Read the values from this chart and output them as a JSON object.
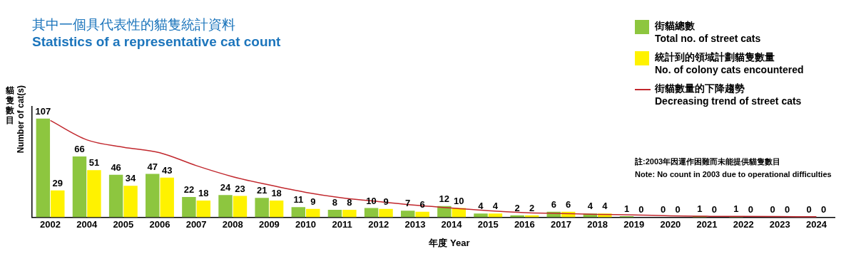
{
  "chart_data": {
    "type": "bar",
    "title": "其中一個具代表性的貓隻統計資料",
    "subtitle": "Statistics of a representative cat count",
    "xlabel": "年度  Year",
    "ylabel": "貓隻數目\nNumber of cat(s)",
    "categories": [
      "2002",
      "2004",
      "2005",
      "2006",
      "2007",
      "2008",
      "2009",
      "2010",
      "2011",
      "2012",
      "2013",
      "2014",
      "2015",
      "2016",
      "2017",
      "2018",
      "2019",
      "2020",
      "2021",
      "2022",
      "2023",
      "2024"
    ],
    "series": [
      {
        "name": "街貓總數\nTotal no. of street cats",
        "color": "#8dc63f",
        "values": [
          107,
          66,
          46,
          47,
          22,
          24,
          21,
          11,
          8,
          10,
          7,
          12,
          4,
          2,
          6,
          4,
          1,
          0,
          1,
          1,
          0,
          0
        ],
        "value_labels": [
          "107",
          "66",
          "46",
          "47",
          "22",
          "24",
          "21",
          "11",
          "8",
          "10",
          "7",
          "12",
          "4",
          "2",
          "6",
          "4",
          "1",
          "0",
          "1",
          "1",
          "0",
          "0"
        ]
      },
      {
        "name": "統計到的領域計劃貓隻數量\nNo. of colony cats encountered",
        "color": "#fff200",
        "values": [
          29,
          51,
          34,
          43,
          18,
          23,
          18,
          9,
          8,
          9,
          6,
          10,
          4,
          2,
          6,
          4,
          0,
          0,
          0,
          0,
          0,
          0
        ],
        "value_labels": [
          "29",
          "51",
          "34",
          "43",
          "18",
          "23",
          "18",
          "9",
          "8",
          "9",
          "6",
          "10",
          "4",
          "2",
          "6",
          "4",
          "0",
          "0",
          "0",
          "0",
          "0",
          "0"
        ]
      },
      {
        "name": "街貓數量的下降趨勢\nDecreasing trend of street cats",
        "type": "line",
        "color": "#c1272d",
        "values": [
          105,
          84,
          76,
          70,
          56,
          44,
          35,
          27,
          21,
          17,
          13,
          10,
          7,
          5,
          4,
          3,
          2.5,
          1.5,
          1,
          0.8,
          0.6,
          0.5
        ]
      }
    ],
    "tick_labels": "x",
    "grid": false,
    "legend": "top right",
    "marker": "none",
    "annotations": [
      "註:2003年因運作困難而未能提供貓隻數目",
      "Note: No count in 2003 due to operational difficulties"
    ]
  }
}
